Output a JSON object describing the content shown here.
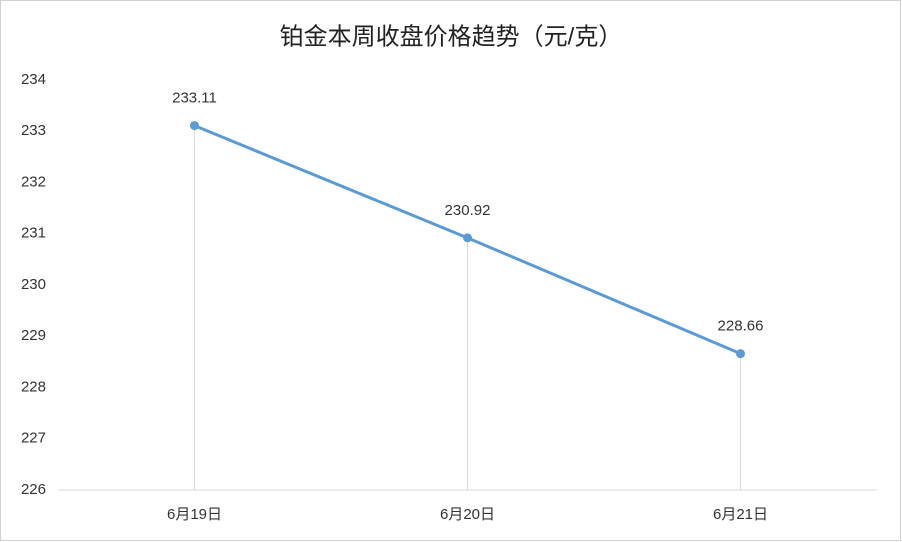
{
  "chart_data": {
    "type": "line",
    "title": "铂金本周收盘价格趋势（元/克）",
    "categories": [
      "6月19日",
      "6月20日",
      "6月21日"
    ],
    "values": [
      233.11,
      230.92,
      228.66
    ],
    "color": "#5b9bd5",
    "ylim": [
      226,
      234
    ],
    "yticks": [
      226,
      227,
      228,
      229,
      230,
      231,
      232,
      233,
      234
    ],
    "drop_lines": true,
    "data_labels": true
  }
}
